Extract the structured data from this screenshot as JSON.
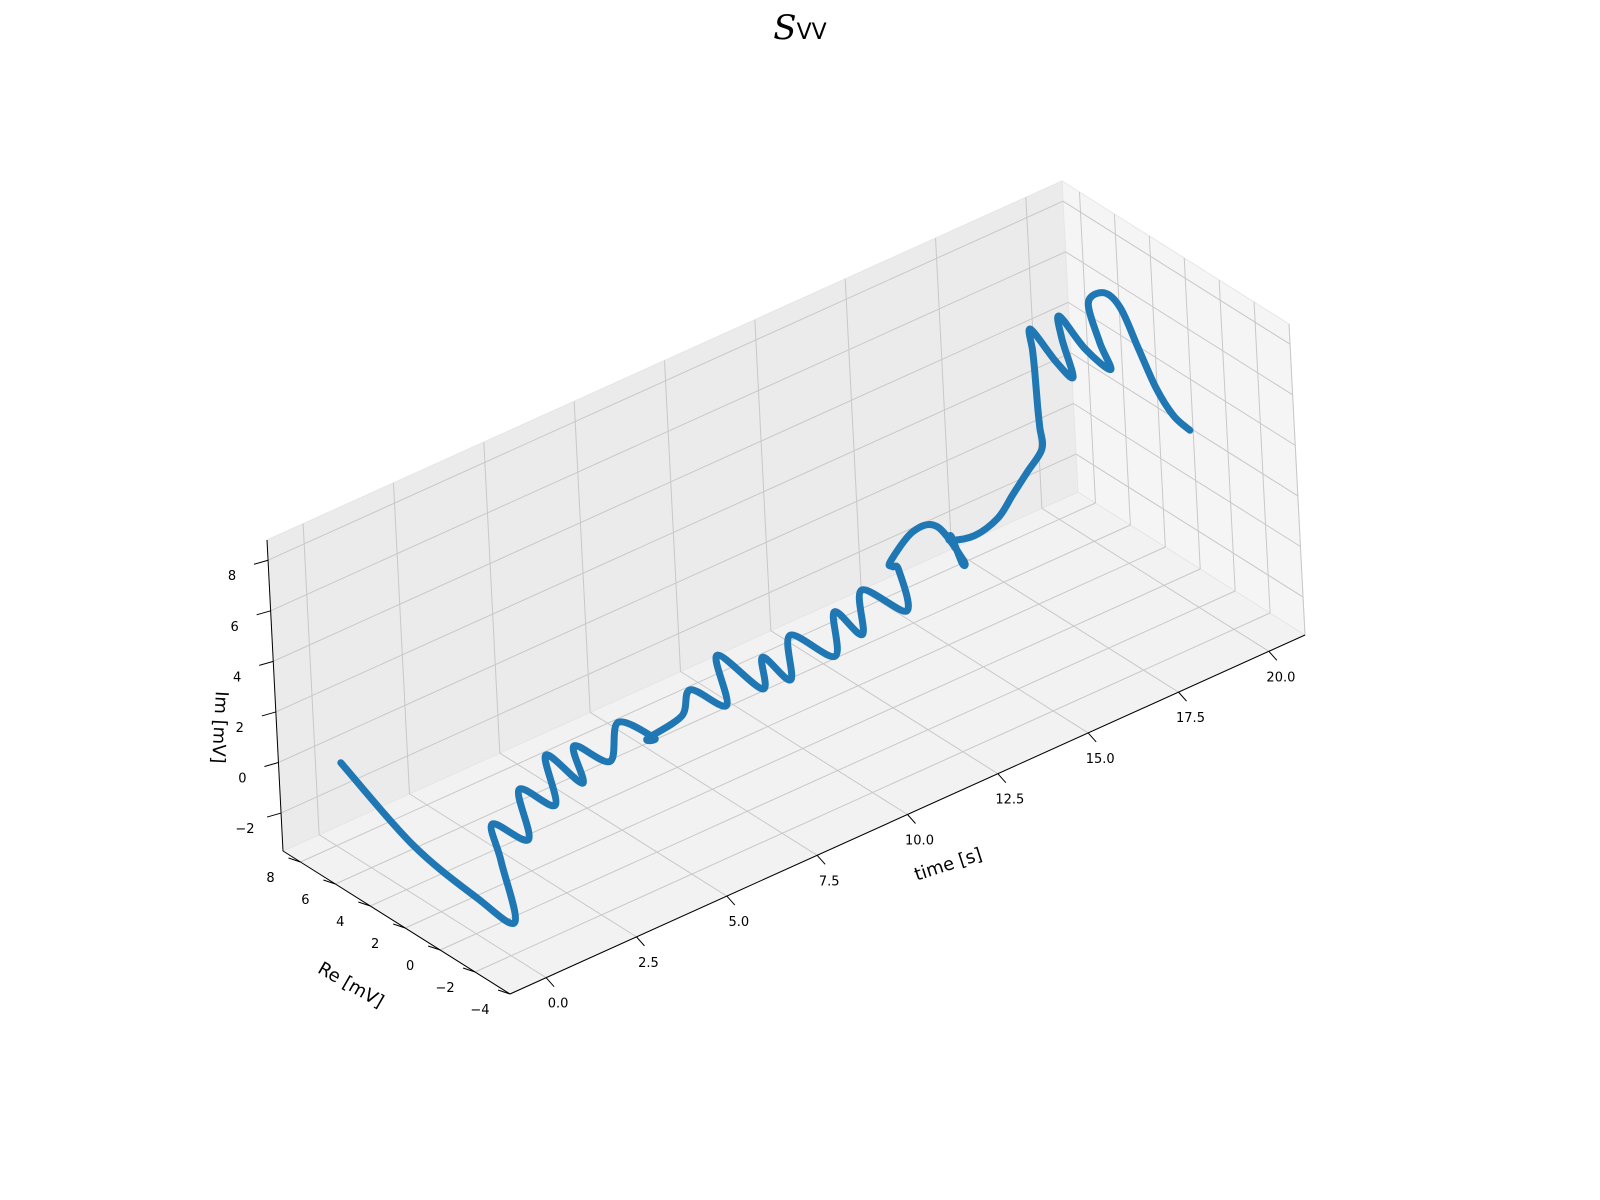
{
  "chart_data": {
    "type": "line",
    "title": {
      "symbol": "S",
      "subscript": "VV"
    },
    "xlabel": "time [s]",
    "ylabel": "Re [mV]",
    "zlabel": "Im [mV]",
    "x_ticks": [
      "0.0",
      "2.5",
      "5.0",
      "7.5",
      "10.0",
      "12.5",
      "15.0",
      "17.5",
      "20.0"
    ],
    "x_tick_values": [
      0,
      2.5,
      5,
      7.5,
      10,
      12.5,
      15,
      17.5,
      20
    ],
    "y_ticks": [
      "−4",
      "−2",
      "0",
      "2",
      "4",
      "6",
      "8"
    ],
    "y_tick_values": [
      -4,
      -2,
      0,
      2,
      4,
      6,
      8
    ],
    "z_ticks": [
      "−2",
      "0",
      "2",
      "4",
      "6",
      "8"
    ],
    "z_tick_values": [
      -2,
      0,
      2,
      4,
      6,
      8
    ],
    "xlim": [
      -1,
      21
    ],
    "ylim": [
      -4,
      9
    ],
    "zlim": [
      -3.5,
      8.8
    ],
    "grid": true,
    "series": [
      {
        "color": "#1f77b4",
        "x": [
          0.0,
          0.0,
          0.3,
          0.6,
          1.0,
          1.5,
          2.0,
          2.5,
          3.0,
          3.5,
          4.0,
          4.5,
          5.0,
          5.5,
          6.0,
          6.5,
          7.0,
          7.5,
          8.0,
          8.5,
          9.0,
          9.5,
          10.0,
          10.5,
          11.0,
          11.5,
          12.0,
          12.5,
          13.0,
          13.3,
          13.6,
          14.0,
          14.2,
          14.4,
          14.6,
          14.8,
          15.0,
          15.2,
          15.4,
          15.6,
          15.8,
          16.0,
          16.2,
          16.4,
          16.6,
          16.8,
          17.0,
          17.2,
          17.4,
          17.6,
          17.8,
          18.0,
          18.2,
          18.4,
          18.6,
          18.8,
          19.0,
          19.2,
          19.4,
          19.6,
          19.8,
          20.0
        ],
        "y": [
          7.5,
          3.5,
          0.5,
          -1.0,
          0.5,
          2.0,
          1.0,
          2.5,
          1.5,
          3.0,
          2.0,
          3.5,
          2.5,
          3.0,
          2.0,
          3.5,
          2.5,
          3.0,
          2.0,
          3.5,
          2.0,
          3.0,
          2.5,
          3.5,
          2.0,
          3.0,
          2.5,
          3.5,
          2.0,
          3.0,
          4.0,
          5.0,
          4.0,
          3.0,
          2.0,
          2.5,
          3.5,
          4.0,
          3.0,
          2.0,
          1.5,
          1.0,
          0.5,
          1.0,
          1.5,
          2.0,
          2.5,
          3.0,
          2.0,
          1.5,
          2.5,
          3.0,
          2.0,
          1.0,
          2.0,
          3.0,
          2.5,
          2.0,
          1.5,
          1.0,
          0.5,
          0.0
        ],
        "z": [
          0.0,
          -1.5,
          -2.5,
          -3.0,
          -1.5,
          -1.0,
          -1.5,
          -0.5,
          -1.0,
          0.0,
          -1.0,
          -0.5,
          -1.0,
          0.0,
          -0.5,
          -1.5,
          -0.5,
          0.0,
          -0.5,
          0.5,
          -0.5,
          0.0,
          -1.0,
          0.0,
          -0.5,
          0.5,
          -0.5,
          0.5,
          0.0,
          1.0,
          0.5,
          0.0,
          1.5,
          2.0,
          1.0,
          0.5,
          1.0,
          0.5,
          1.0,
          2.0,
          3.0,
          4.0,
          5.0,
          5.5,
          6.0,
          7.0,
          7.5,
          8.0,
          7.0,
          6.5,
          7.5,
          8.0,
          7.0,
          6.5,
          7.0,
          8.0,
          8.5,
          8.0,
          6.5,
          5.0,
          4.0,
          3.5
        ]
      }
    ]
  }
}
